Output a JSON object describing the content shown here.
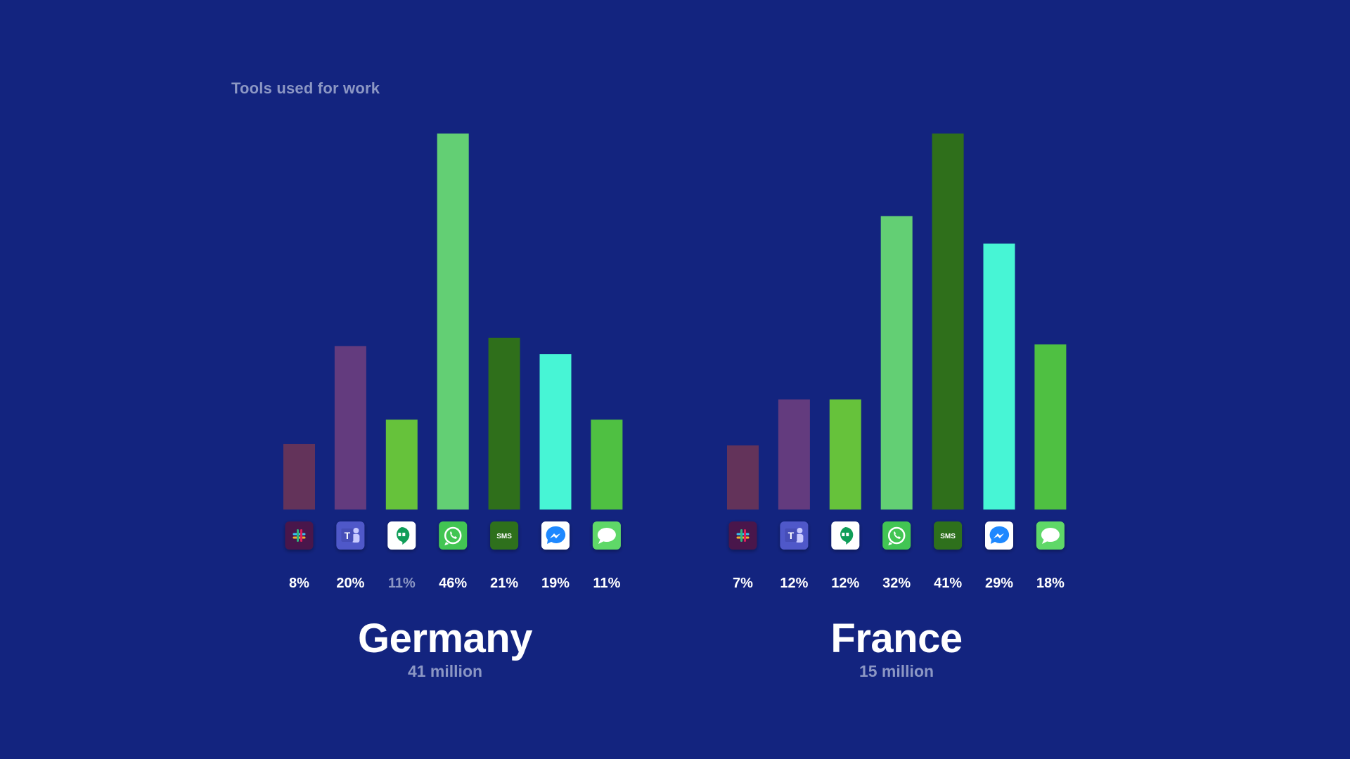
{
  "heading": "Tools used for work",
  "colors": {
    "background": "#13247f",
    "muted_text": "#8c97c4",
    "slack": "#63335a",
    "teams": "#633b7e",
    "hangouts": "#66c23b",
    "whatsapp": "#63cf74",
    "sms": "#2f6f1b",
    "messenger": "#47f5d5",
    "imessage": "#4fc042"
  },
  "tools": [
    {
      "key": "slack",
      "icon": "slack-icon",
      "color": "#63335a"
    },
    {
      "key": "teams",
      "icon": "microsoft-teams-icon",
      "color": "#633b7e"
    },
    {
      "key": "hangouts",
      "icon": "google-hangouts-icon",
      "color": "#66c23b"
    },
    {
      "key": "whatsapp",
      "icon": "whatsapp-icon",
      "color": "#63cf74"
    },
    {
      "key": "sms",
      "icon": "sms-icon",
      "color": "#2f6f1b",
      "icon_text": "SMS"
    },
    {
      "key": "messenger",
      "icon": "facebook-messenger-icon",
      "color": "#47f5d5"
    },
    {
      "key": "imessage",
      "icon": "imessage-icon",
      "color": "#4fc042"
    }
  ],
  "chart_data": [
    {
      "type": "bar",
      "title": "Germany",
      "subtitle": "41 million",
      "categories": [
        "Slack",
        "Microsoft Teams",
        "Google Hangouts",
        "WhatsApp",
        "SMS",
        "Facebook Messenger",
        "iMessage"
      ],
      "values": [
        8,
        20,
        11,
        46,
        21,
        19,
        11
      ],
      "labels": [
        "8%",
        "20%",
        "11%",
        "46%",
        "21%",
        "19%",
        "11%"
      ],
      "muted_labels": [
        2
      ],
      "ylim": [
        0,
        46
      ],
      "grid": false
    },
    {
      "type": "bar",
      "title": "France",
      "subtitle": "15 million",
      "categories": [
        "Slack",
        "Microsoft Teams",
        "Google Hangouts",
        "WhatsApp",
        "SMS",
        "Facebook Messenger",
        "iMessage"
      ],
      "values": [
        7,
        12,
        12,
        32,
        41,
        29,
        18
      ],
      "labels": [
        "7%",
        "12%",
        "12%",
        "32%",
        "41%",
        "29%",
        "18%"
      ],
      "muted_labels": [],
      "ylim": [
        0,
        41
      ],
      "grid": false
    }
  ]
}
